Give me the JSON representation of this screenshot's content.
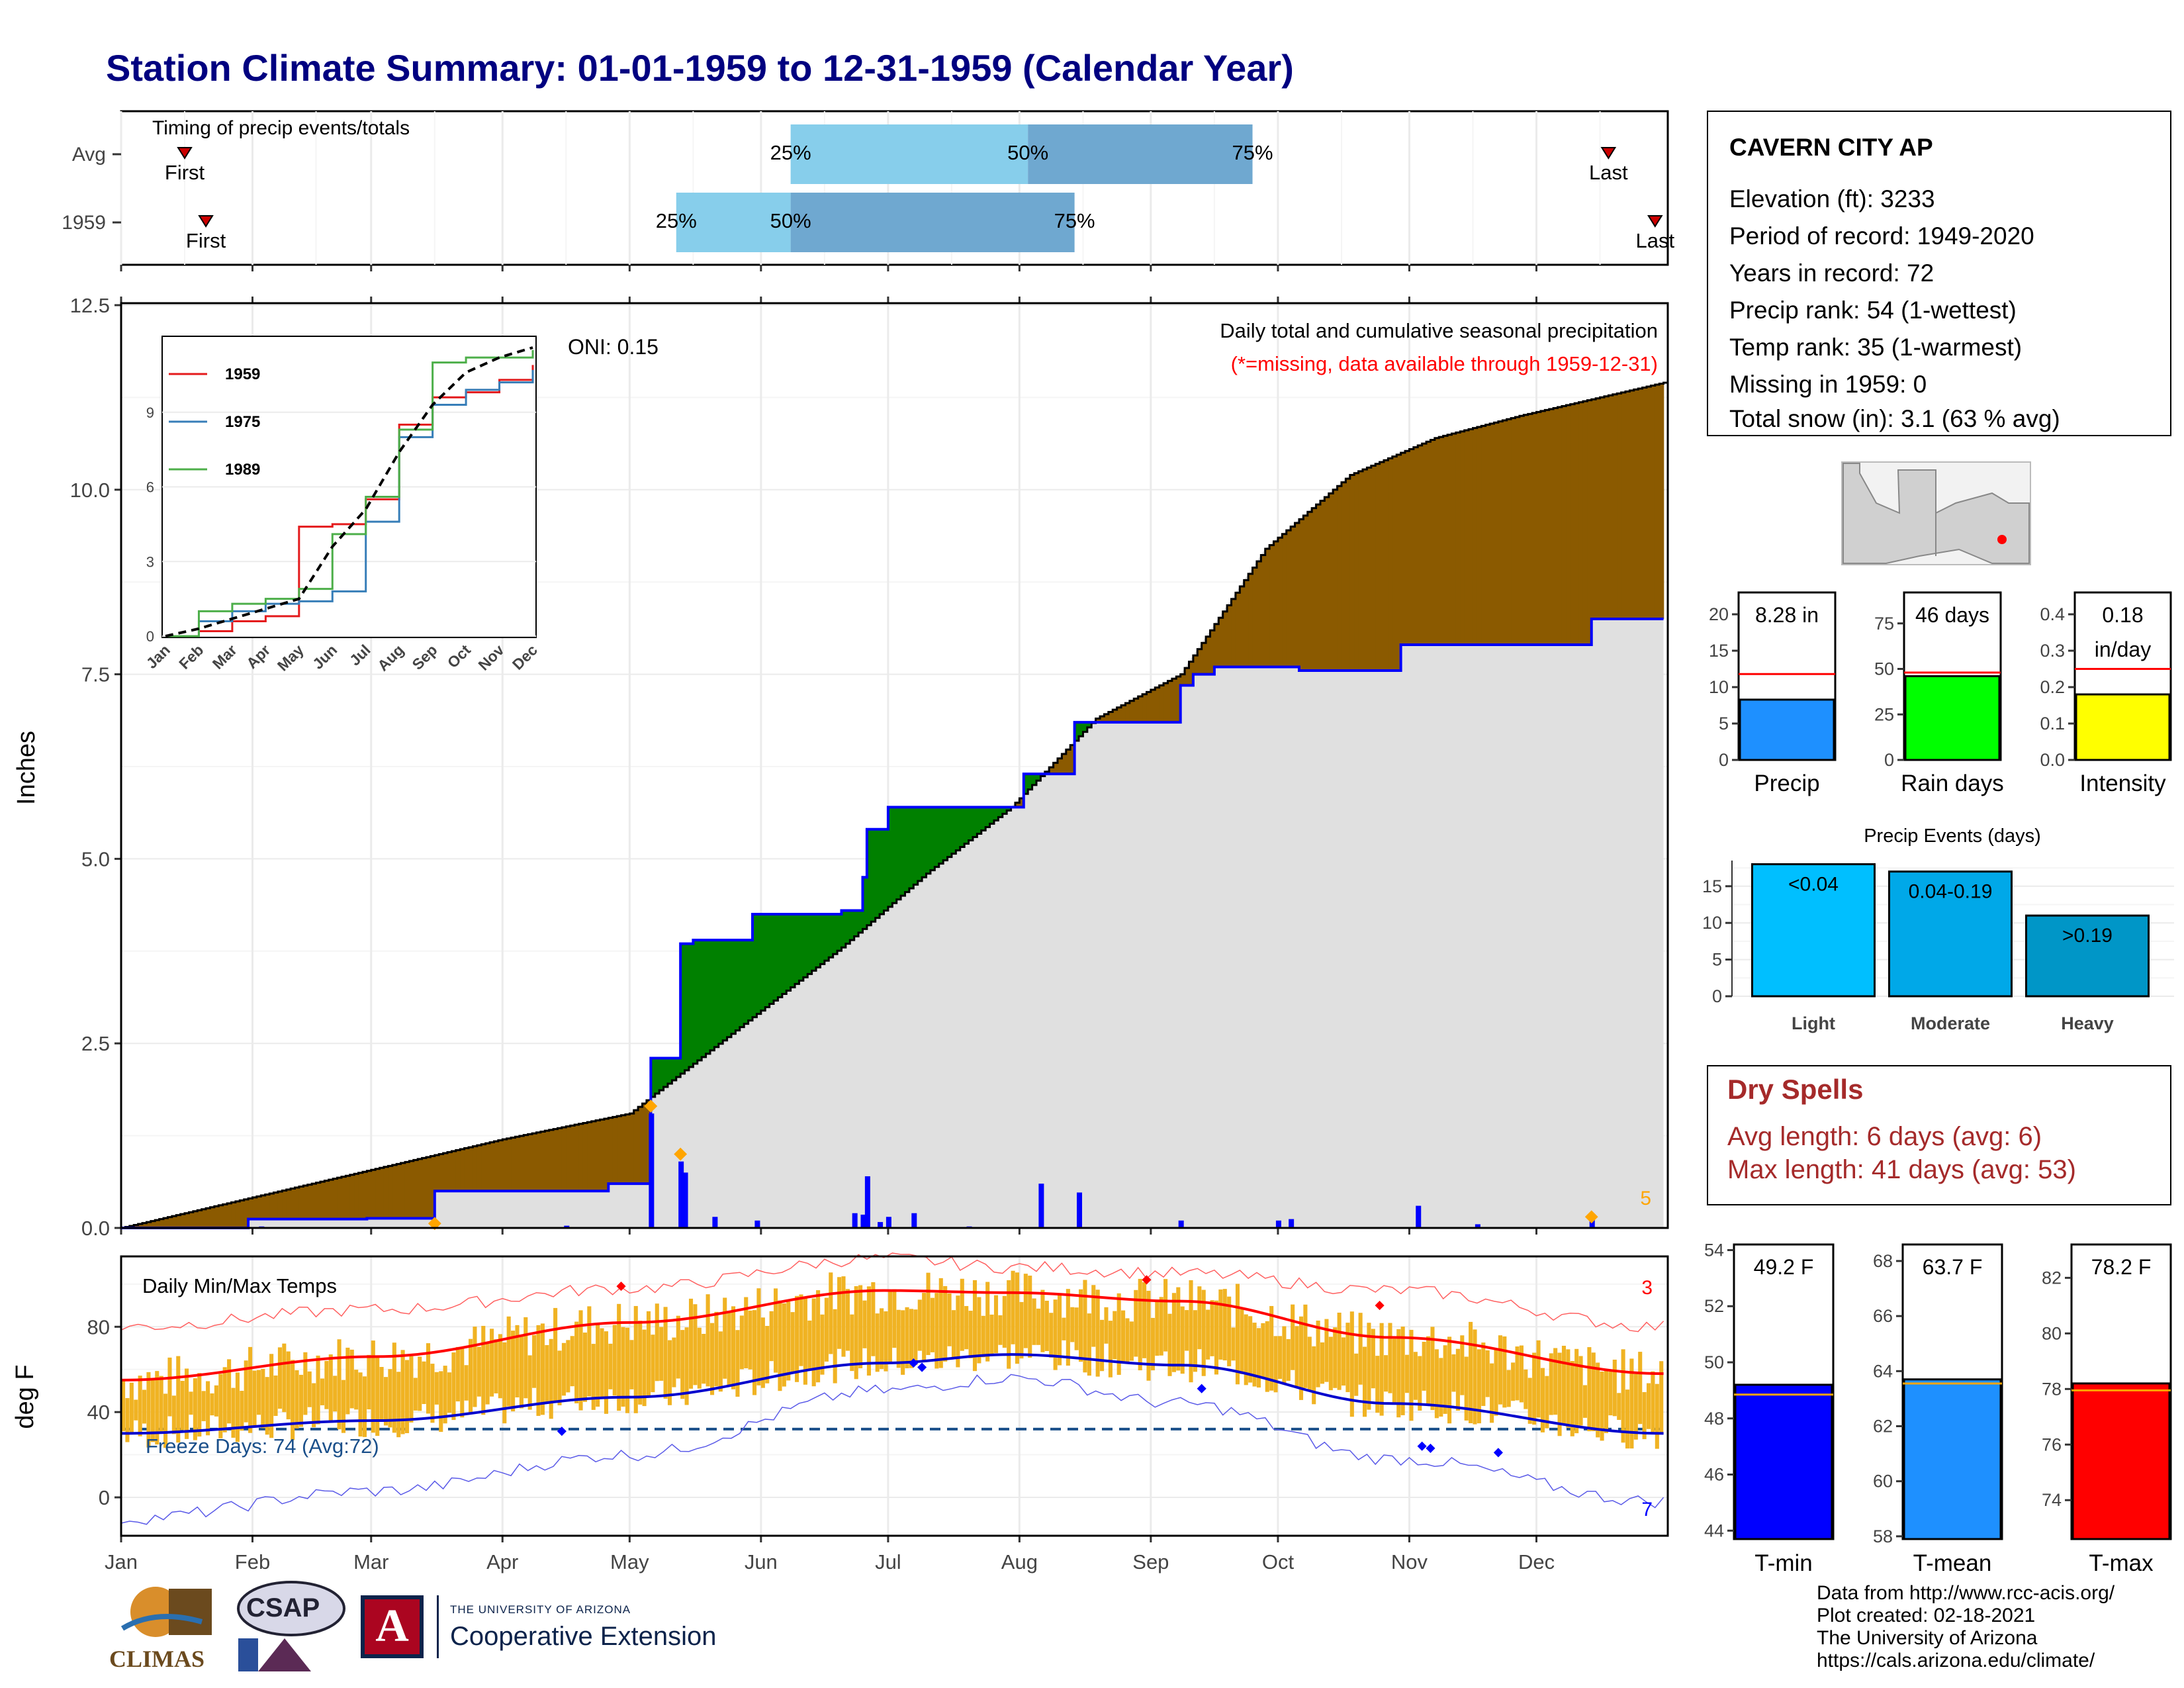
{
  "title": "Station Climate Summary: 01-01-1959 to 12-31-1959 (Calendar Year)",
  "timing": {
    "label": "Timing of precip events/totals",
    "rows": [
      {
        "name": "Avg",
        "first_label": "First",
        "last_label": "Last",
        "first": 15,
        "last": 351,
        "p25": 158,
        "p50": 214,
        "p75": 267
      },
      {
        "name": "1959",
        "first_label": "First",
        "last_label": "Last",
        "first": 20,
        "last": 362,
        "p25": 131,
        "p50": 158,
        "p75": 225
      }
    ],
    "pct_labels": [
      "25%",
      "50%",
      "75%"
    ]
  },
  "precip_panel": {
    "ylabel": "Inches",
    "oni": "ONI: 0.15",
    "title": "Daily total and cumulative seasonal precipitation",
    "subtitle": "(*=missing, data available through 1959-12-31)",
    "corner_count": "5",
    "yticks": [
      "0.0",
      "2.5",
      "5.0",
      "7.5",
      "10.0",
      "12.5"
    ]
  },
  "months": [
    "Jan",
    "Feb",
    "Mar",
    "Apr",
    "May",
    "Jun",
    "Jul",
    "Aug",
    "Sep",
    "Oct",
    "Nov",
    "Dec"
  ],
  "chart_data": [
    {
      "type": "step",
      "name": "cumulative precipitation",
      "x_unit": "day of year",
      "ylim": [
        0,
        12.5
      ],
      "series": [
        {
          "name": "Avg",
          "x": [
            0,
            30,
            60,
            90,
            120,
            130,
            150,
            170,
            190,
            210,
            230,
            250,
            270,
            290,
            310,
            330,
            364
          ],
          "values": [
            0,
            0.4,
            0.8,
            1.2,
            1.55,
            2.0,
            2.9,
            3.8,
            4.8,
            5.7,
            6.9,
            7.5,
            9.2,
            10.2,
            10.7,
            11.0,
            11.45
          ]
        },
        {
          "name": "1959",
          "x": [
            0,
            30,
            58,
            74,
            115,
            125,
            132,
            135,
            149,
            170,
            175,
            176,
            181,
            213,
            225,
            250,
            253,
            258,
            270,
            275,
            278,
            302,
            306,
            345,
            347,
            364
          ],
          "values": [
            0,
            0.12,
            0.13,
            0.5,
            0.6,
            2.3,
            3.85,
            3.9,
            4.25,
            4.3,
            4.75,
            5.4,
            5.7,
            6.15,
            6.85,
            7.35,
            7.5,
            7.6,
            7.6,
            7.6,
            7.55,
            7.9,
            7.9,
            7.9,
            8.25,
            8.25
          ]
        }
      ]
    },
    {
      "type": "bar",
      "name": "daily precipitation",
      "x": [
        0,
        33,
        61,
        74,
        105,
        125,
        132,
        133,
        140,
        150,
        173,
        175,
        176,
        179,
        181,
        187,
        200,
        217,
        226,
        250,
        273,
        276,
        306,
        320,
        347
      ],
      "values": [
        0.01,
        0.02,
        0.01,
        0.06,
        0.03,
        1.55,
        0.9,
        0.75,
        0.15,
        0.1,
        0.2,
        0.18,
        0.7,
        0.08,
        0.15,
        0.2,
        0.02,
        0.6,
        0.48,
        0.1,
        0.1,
        0.12,
        0.3,
        0.05,
        0.12
      ]
    },
    {
      "type": "line",
      "name": "inset cumulative precipitation",
      "x": [
        "Jan",
        "Feb",
        "Mar",
        "Apr",
        "May",
        "Jun",
        "Jul",
        "Aug",
        "Sep",
        "Oct",
        "Nov",
        "Dec"
      ],
      "ylim": [
        0,
        12
      ],
      "series": [
        {
          "name": "1959",
          "values": [
            0,
            0.2,
            0.6,
            0.8,
            4.4,
            4.5,
            5.5,
            8.5,
            9.6,
            9.8,
            10.3,
            10.9
          ]
        },
        {
          "name": "1975",
          "values": [
            0,
            0.6,
            1.0,
            1.3,
            1.4,
            1.8,
            4.6,
            8.0,
            9.3,
            9.9,
            10.2,
            10.7
          ]
        },
        {
          "name": "1989",
          "values": [
            0,
            1.0,
            1.3,
            1.5,
            1.9,
            4.1,
            5.6,
            8.3,
            11.0,
            11.2,
            11.2,
            11.5
          ]
        },
        {
          "name": "Avg",
          "values": [
            0,
            0.3,
            0.7,
            1.1,
            1.5,
            3.6,
            5.1,
            7.4,
            9.3,
            10.6,
            11.2,
            11.6
          ]
        }
      ]
    },
    {
      "type": "bar",
      "name": "Precip",
      "values": [
        8.28
      ],
      "ylim": [
        0,
        23
      ],
      "avg": 11.8
    },
    {
      "type": "bar",
      "name": "Rain days",
      "values": [
        46
      ],
      "ylim": [
        0,
        92
      ],
      "avg": 48
    },
    {
      "type": "bar",
      "name": "Intensity",
      "values": [
        0.18
      ],
      "ylim": [
        0,
        0.46
      ],
      "avg": 0.25
    },
    {
      "type": "bar",
      "title": "Precip Events (days)",
      "categories": [
        "Light",
        "Moderate",
        "Heavy"
      ],
      "values": [
        18,
        17,
        11
      ],
      "ylim": [
        0,
        18.5
      ]
    },
    {
      "type": "bar",
      "name": "T-min",
      "values": [
        49.2
      ],
      "ylim": [
        43.7,
        54.2
      ],
      "avg": 48.85
    },
    {
      "type": "bar",
      "name": "T-mean",
      "values": [
        63.7
      ],
      "ylim": [
        57.9,
        68.6
      ],
      "avg": 63.55
    },
    {
      "type": "bar",
      "name": "T-max",
      "values": [
        78.2
      ],
      "ylim": [
        72.6,
        83.2
      ],
      "avg": 77.95
    },
    {
      "type": "line",
      "name": "daily temps",
      "x_unit": "day of year",
      "ylim": [
        -18,
        113
      ],
      "series": [
        {
          "name": "avg max",
          "x": [
            0,
            60,
            120,
            180,
            210,
            250,
            300,
            364
          ],
          "values": [
            55,
            66,
            82,
            97,
            96,
            92,
            75,
            58
          ]
        },
        {
          "name": "avg min",
          "x": [
            0,
            60,
            120,
            180,
            210,
            250,
            300,
            364
          ],
          "values": [
            30,
            36,
            47,
            63,
            67,
            62,
            44,
            30
          ]
        },
        {
          "name": "record max",
          "x": [
            0,
            60,
            120,
            180,
            210,
            250,
            300,
            364
          ],
          "values": [
            80,
            88,
            98,
            112,
            108,
            105,
            97,
            80
          ]
        },
        {
          "name": "record min",
          "x": [
            0,
            60,
            120,
            180,
            210,
            250,
            300,
            364
          ],
          "values": [
            -10,
            3,
            20,
            50,
            56,
            44,
            18,
            -2
          ]
        }
      ]
    }
  ],
  "station": {
    "name": "CAVERN CITY AP",
    "lines": [
      "Elevation (ft): 3233",
      "Period of record: 1949-2020",
      "Years in record: 72",
      "Precip rank: 54 (1-wettest)",
      "Temp rank: 35 (1-warmest)",
      "Missing in 1959: 0",
      "Total snow (in): 3.1 (63 % avg)"
    ]
  },
  "stats": [
    {
      "label": "Precip",
      "value": "8.28 in",
      "color": "#1e90ff",
      "yticks": [
        "0",
        "5",
        "10",
        "15",
        "20"
      ]
    },
    {
      "label": "Rain days",
      "value": "46 days",
      "color": "#00ff00",
      "yticks": [
        "0",
        "25",
        "50",
        "75"
      ]
    },
    {
      "label": "Intensity",
      "value": "0.18",
      "value2": "in/day",
      "color": "#ffff00",
      "yticks": [
        "0.0",
        "0.1",
        "0.2",
        "0.3",
        "0.4"
      ]
    }
  ],
  "events": {
    "title": "Precip Events (days)",
    "labels": [
      "<0.04",
      "0.04-0.19",
      ">0.19"
    ],
    "yticks": [
      "0",
      "5",
      "10",
      "15"
    ]
  },
  "dry_spells": {
    "title": "Dry Spells",
    "avg_line": "Avg length: 6 days (avg: 6)",
    "max_line": "Max length: 41 days (avg: 53)"
  },
  "temp_panel": {
    "label": "Daily Min/Max Temps",
    "ylabel": "deg F",
    "freeze": "Freeze Days: 74 (Avg:72)",
    "count_hi": "3",
    "count_lo": "7",
    "yticks": [
      "0",
      "40",
      "80"
    ]
  },
  "temp_stats": [
    {
      "label": "T-min",
      "value": "49.2 F",
      "color": "#0000ff",
      "yticks": [
        "44",
        "46",
        "48",
        "50",
        "52",
        "54"
      ]
    },
    {
      "label": "T-mean",
      "value": "63.7 F",
      "color": "#1e90ff",
      "yticks": [
        "58",
        "60",
        "62",
        "64",
        "66",
        "68"
      ]
    },
    {
      "label": "T-max",
      "value": "78.2 F",
      "color": "#ff0000",
      "yticks": [
        "74",
        "76",
        "78",
        "80",
        "82"
      ]
    }
  ],
  "footer": [
    "Data from http://www.rcc-acis.org/",
    "Plot created: 02-18-2021",
    "The University of Arizona",
    "https://cals.arizona.edu/climate/"
  ],
  "logos": {
    "climas": "CLIMAS",
    "csap": "CSAP",
    "ua_small": "THE UNIVERSITY OF ARIZONA",
    "coop": "Cooperative Extension"
  },
  "colors": {
    "title": "#000080",
    "deficit": "#8b5a00",
    "surplus": "#008000",
    "avg_fill": "#e0e0e0",
    "bar": "#0000ff",
    "dry": "#a52a2a"
  }
}
